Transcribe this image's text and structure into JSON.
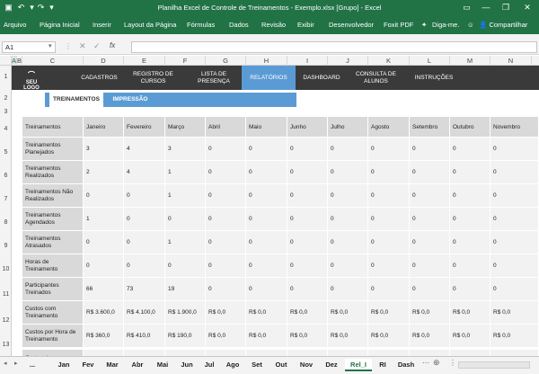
{
  "titlebar": {
    "title": "Planilha Excel de Controle de Treinamentos - Exemplo.xlsx [Grupo] - Excel",
    "win_minimize": "—",
    "win_restore": "❐",
    "win_close": "✕"
  },
  "ribbon": {
    "tabs": [
      "Arquivo",
      "Página Inicial",
      "Inserir",
      "Layout da Página",
      "Fórmulas",
      "Dados",
      "Revisão",
      "Exibir",
      "Desenvolvedor",
      "Foxit PDF"
    ],
    "tell_me": "Diga-me.",
    "share": "Compartilhar"
  },
  "formula_bar": {
    "name_box": "A1",
    "fx": "fx"
  },
  "columns": [
    "A",
    "B",
    "C",
    "D",
    "E",
    "F",
    "G",
    "H",
    "I",
    "J",
    "K",
    "L",
    "M",
    "N"
  ],
  "rows": [
    "1",
    "2",
    "3",
    "4",
    "5",
    "6",
    "7",
    "8",
    "9",
    "10",
    "11",
    "12",
    "13"
  ],
  "nav": {
    "logo": "SEU LOGO",
    "items": [
      "CADASTROS",
      "REGISTRO DE CURSOS",
      "LISTA DE PRESENÇA",
      "RELATÓRIOS",
      "DASHBOARD",
      "CONSULTA DE ALUNOS",
      "INSTRUÇÕES"
    ],
    "subtabs": [
      "TREINAMENTOS",
      "IMPRESSÃO"
    ]
  },
  "table": {
    "header": [
      "Treinamentos",
      "Janeiro",
      "Fevereiro",
      "Março",
      "Abril",
      "Maio",
      "Junho",
      "Julho",
      "Agosto",
      "Setembro",
      "Outubro",
      "Novembro"
    ],
    "rows": [
      {
        "label": "Treinamentos Planejados",
        "values": [
          "3",
          "4",
          "3",
          "0",
          "0",
          "0",
          "0",
          "0",
          "0",
          "0",
          "0"
        ]
      },
      {
        "label": "Treinamentos Realizados",
        "values": [
          "2",
          "4",
          "1",
          "0",
          "0",
          "0",
          "0",
          "0",
          "0",
          "0",
          "0"
        ]
      },
      {
        "label": "Treinamentos Não Realizados",
        "values": [
          "0",
          "0",
          "1",
          "0",
          "0",
          "0",
          "0",
          "0",
          "0",
          "0",
          "0"
        ]
      },
      {
        "label": "Treinamentos Agendados",
        "values": [
          "1",
          "0",
          "0",
          "0",
          "0",
          "0",
          "0",
          "0",
          "0",
          "0",
          "0"
        ]
      },
      {
        "label": "Treinamentos Atrasados",
        "values": [
          "0",
          "0",
          "1",
          "0",
          "0",
          "0",
          "0",
          "0",
          "0",
          "0",
          "0"
        ]
      },
      {
        "label": "Horas de Treinamento",
        "values": [
          "0",
          "0",
          "0",
          "0",
          "0",
          "0",
          "0",
          "0",
          "0",
          "0",
          "0"
        ]
      },
      {
        "label": "Participantes Treinados",
        "values": [
          "66",
          "73",
          "19",
          "0",
          "0",
          "0",
          "0",
          "0",
          "0",
          "0",
          "0"
        ]
      },
      {
        "label": "Custos com Treinamento",
        "values": [
          "R$ 3.600,0",
          "R$ 4.100,0",
          "R$ 1.900,0",
          "R$ 0,0",
          "R$ 0,0",
          "R$ 0,0",
          "R$ 0,0",
          "R$ 0,0",
          "R$ 0,0",
          "R$ 0,0",
          "R$ 0,0"
        ]
      },
      {
        "label": "Custos por Hora de Treinamento",
        "values": [
          "R$ 360,0",
          "R$ 410,0",
          "R$ 190,0",
          "R$ 0,0",
          "R$ 0,0",
          "R$ 0,0",
          "R$ 0,0",
          "R$ 0,0",
          "R$ 0,0",
          "R$ 0,0",
          "R$ 0,0"
        ]
      },
      {
        "label": "Custos de",
        "values": [
          "",
          "",
          "",
          "",
          "",
          "",
          "",
          "",
          "",
          "",
          ""
        ]
      }
    ]
  },
  "sheet_tabs": [
    "...",
    "Jan",
    "Fev",
    "Mar",
    "Abr",
    "Mai",
    "Jun",
    "Jul",
    "Ago",
    "Set",
    "Out",
    "Nov",
    "Dez",
    "Rel_I",
    "RI",
    "Dash"
  ],
  "active_sheet": "Rel_I",
  "colors": {
    "excel_green": "#217346",
    "nav_dark": "#3a3a3a",
    "accent_blue": "#5b9bd5"
  }
}
